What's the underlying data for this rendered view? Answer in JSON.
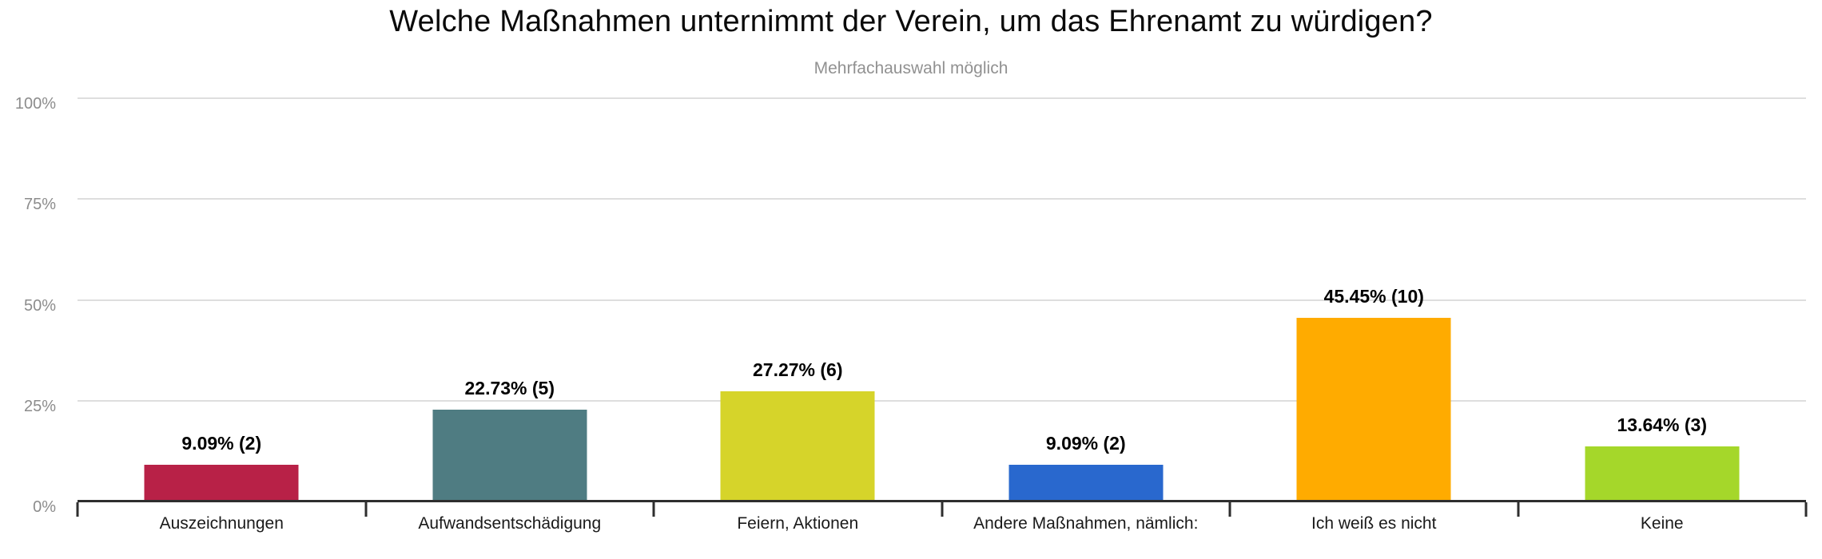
{
  "chart_data": {
    "type": "bar",
    "title": "Welche Maßnahmen unternimmt der Verein, um das Ehrenamt zu würdigen?",
    "subtitle": "Mehrfachauswahl möglich",
    "categories": [
      "Auszeichnungen",
      "Aufwandsentschädigung",
      "Feiern, Aktionen",
      "Andere Maßnahmen, nämlich:",
      "Ich weiß es nicht",
      "Keine"
    ],
    "values": [
      9.09,
      22.73,
      27.27,
      9.09,
      45.45,
      13.64
    ],
    "counts": [
      2,
      5,
      6,
      2,
      10,
      3
    ],
    "value_labels": [
      "9.09% (2)",
      "22.73% (5)",
      "27.27% (6)",
      "9.09% (2)",
      "45.45% (10)",
      "13.64% (3)"
    ],
    "bar_colors": [
      "#b82147",
      "#4f7c82",
      "#d6d42a",
      "#2968ce",
      "#ffab00",
      "#a5d72a"
    ],
    "ylabel": "",
    "xlabel": "",
    "ylim": [
      0,
      100
    ],
    "yticks": [
      {
        "value": 0,
        "label": "0%"
      },
      {
        "value": 25,
        "label": "25%"
      },
      {
        "value": 50,
        "label": "50%"
      },
      {
        "value": 75,
        "label": "75%"
      },
      {
        "value": 100,
        "label": "100%"
      }
    ],
    "grid": "horizontal",
    "legend": "none",
    "axis_color": "#2e2e2e",
    "gridline_color": "#dedede"
  }
}
